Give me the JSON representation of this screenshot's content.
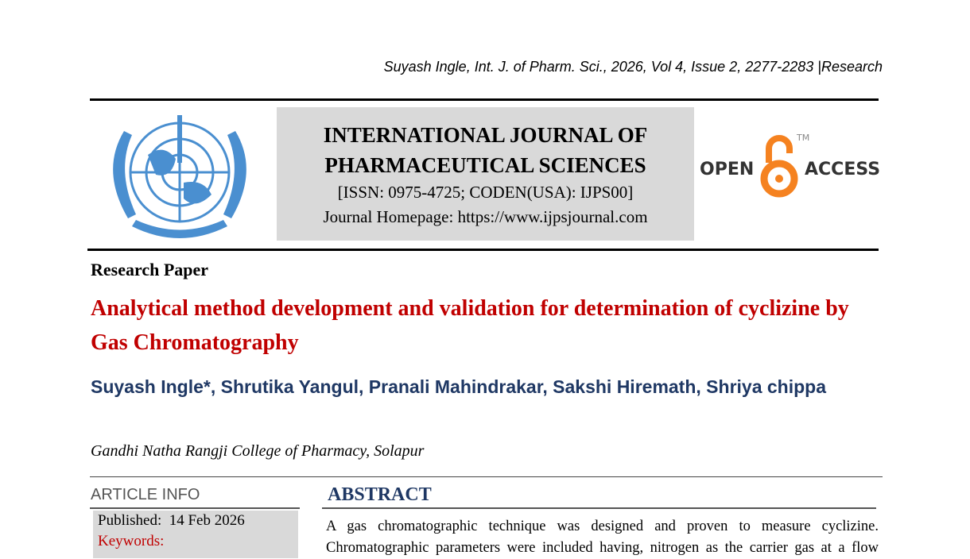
{
  "header": {
    "citation": "Suyash Ingle, Int. J. of Pharm. Sci., 2026, Vol 4, Issue 2, 2277-2283 |Research"
  },
  "journal": {
    "name_line1": "INTERNATIONAL JOURNAL OF",
    "name_line2": "PHARMACEUTICAL SCIENCES",
    "issn": "[ISSN: 0975-4725; CODEN(USA): IJPS00]",
    "homepage": "Journal Homepage: https://www.ijpsjournal.com",
    "open_access": {
      "open": "OPEN",
      "access": "ACCESS",
      "tm": "TM"
    },
    "colors": {
      "logo_blue": "#4a8fd0",
      "oa_orange": "#f58220"
    }
  },
  "article": {
    "type": "Research Paper",
    "title": "Analytical method development and validation for determination of cyclizine by Gas Chromatography",
    "authors": "Suyash Ingle*, Shrutika Yangul, Pranali Mahindrakar, Sakshi Hiremath, Shriya chippa",
    "affiliation": "Gandhi Natha Rangji College of Pharmacy, Solapur"
  },
  "article_info": {
    "heading": "ARTICLE INFO",
    "published_label": "Published:",
    "published_date": "14 Feb 2026",
    "keywords_label": "Keywords:"
  },
  "abstract": {
    "heading": "ABSTRACT",
    "line1": "A gas chromatographic technique was designed and proven to measure cyclizine.",
    "line2": "Chromatographic parameters were included having, nitrogen as the carrier gas at a flow"
  }
}
